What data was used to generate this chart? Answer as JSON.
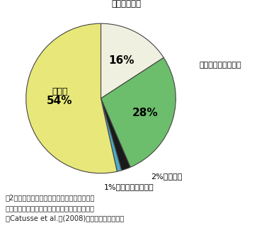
{
  "slices": [
    {
      "label": "二次代謝関連",
      "pct": 16,
      "color": "#f0f0e0"
    },
    {
      "label": "防御／病害応答関連",
      "pct": 28,
      "color": "#6cbd6c"
    },
    {
      "label": "代謝関連",
      "pct": 2,
      "color": "#1a1a1a"
    },
    {
      "label": "タンパク合成関連",
      "pct": 1,
      "color": "#4bacc6"
    },
    {
      "label": "その他",
      "pct": 54,
      "color": "#e8e87a"
    }
  ],
  "start_angle": 90,
  "background_color": "#ffffff",
  "caption_line1": "図2　無菌的に水耕栽培を行なったイネの根か",
  "caption_line2": "ら分泌されたタンパク質の機能的な分類。分類",
  "caption_line3": "はCatusse et al.　(2008)に従って行なった。"
}
